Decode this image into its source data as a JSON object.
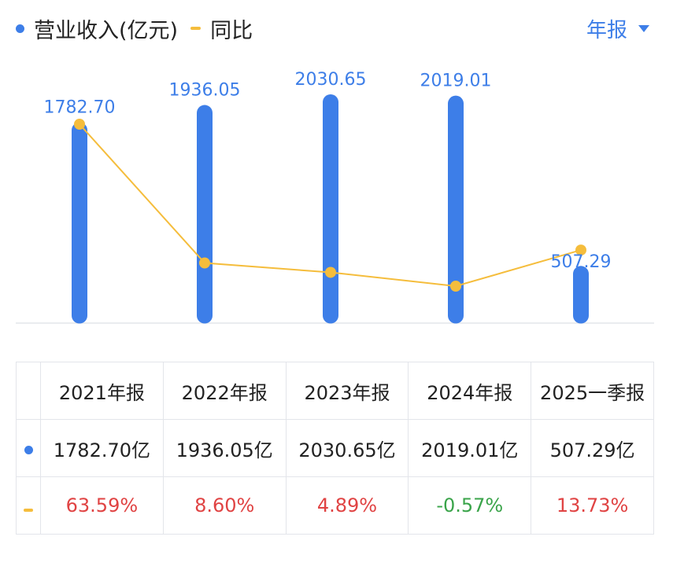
{
  "legend": {
    "revenue_label": "营业收入(亿元)",
    "yoy_label": "同比"
  },
  "period_select": {
    "label": "年报"
  },
  "colors": {
    "bar": "#3d7ee8",
    "line": "#f5bd3c",
    "positive": "#e04343",
    "negative": "#3aa44a"
  },
  "chart_data": {
    "type": "bar",
    "categories": [
      "2021年报",
      "2022年报",
      "2023年报",
      "2024年报",
      "2025一季报"
    ],
    "series": [
      {
        "name": "营业收入(亿元)",
        "type": "bar",
        "values": [
          1782.7,
          1936.05,
          2030.65,
          2019.01,
          507.29
        ],
        "labels": [
          "1782.70",
          "1936.05",
          "2030.65",
          "2019.01",
          "507.29"
        ]
      },
      {
        "name": "同比",
        "type": "line",
        "values": [
          63.59,
          8.6,
          4.89,
          -0.57,
          13.73
        ]
      }
    ],
    "grid": false,
    "legend_position": "top-left"
  },
  "table": {
    "headers": [
      "2021年报",
      "2022年报",
      "2023年报",
      "2024年报",
      "2025一季报"
    ],
    "revenue": [
      "1782.70亿",
      "1936.05亿",
      "2030.65亿",
      "2019.01亿",
      "507.29亿"
    ],
    "yoy": [
      "63.59%",
      "8.60%",
      "4.89%",
      "-0.57%",
      "13.73%"
    ]
  }
}
